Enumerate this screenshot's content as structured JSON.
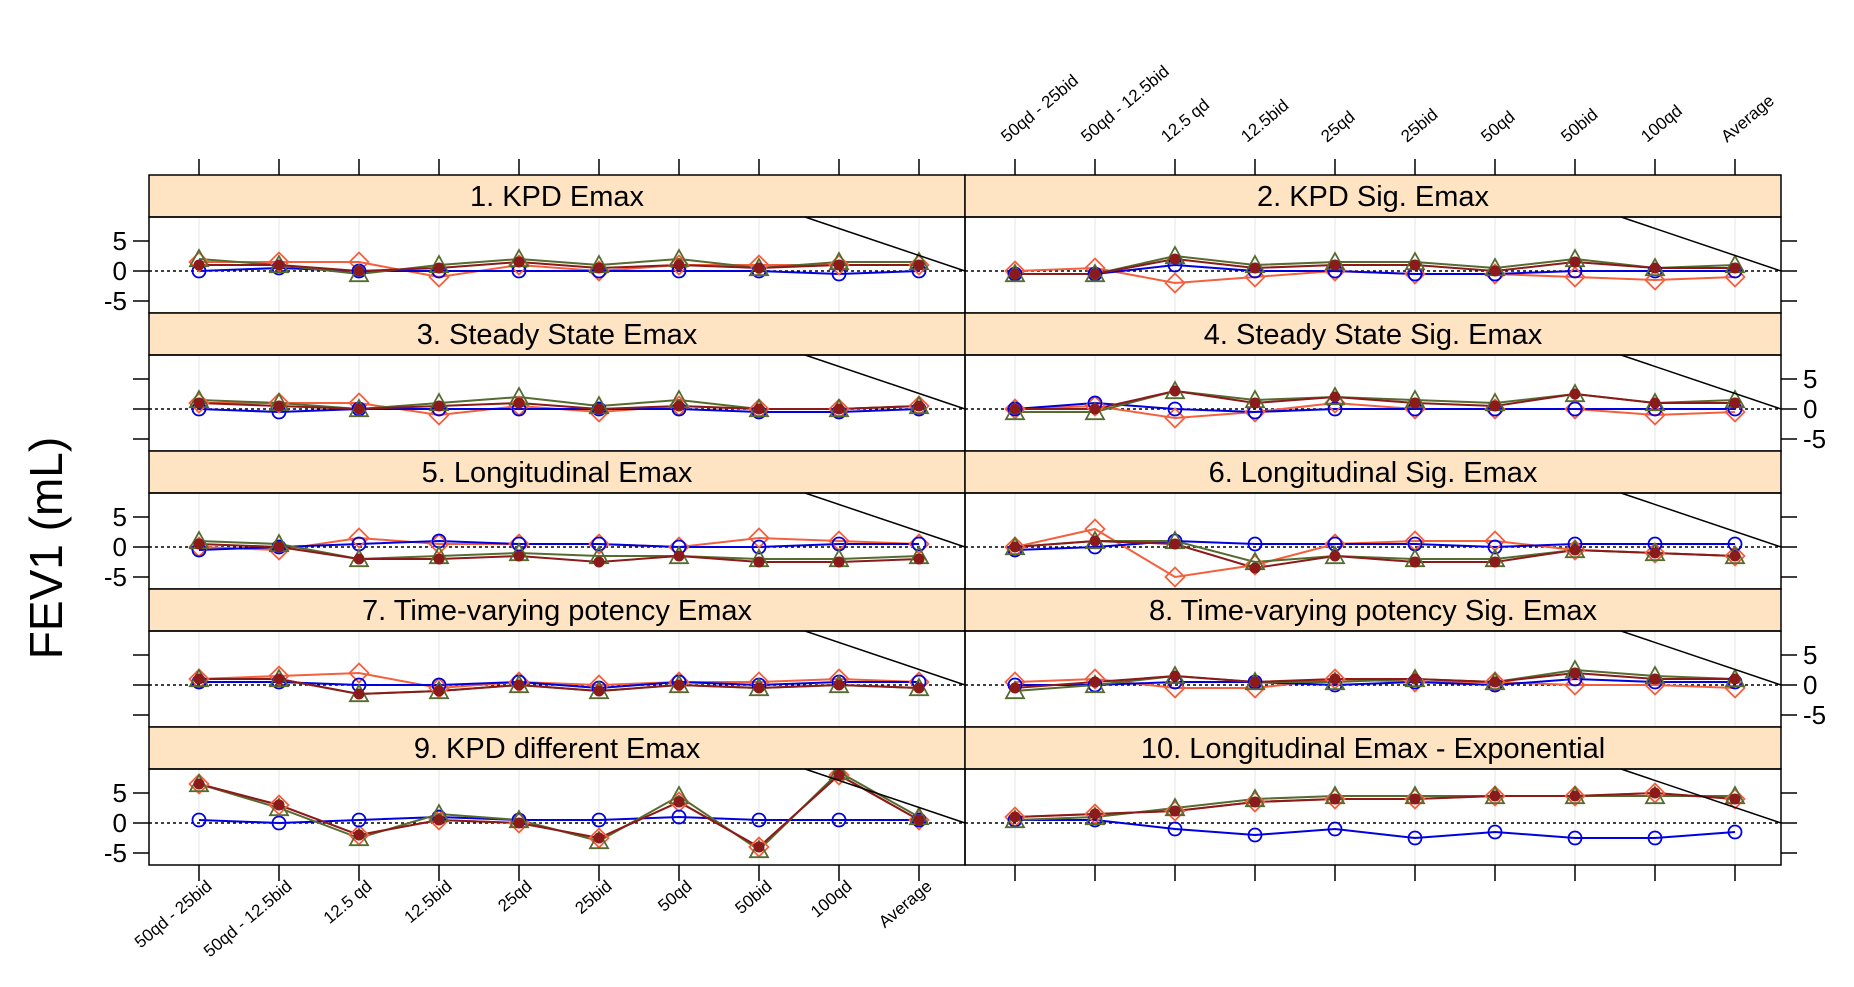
{
  "y_axis_label": "FEV1 (mL)",
  "categories": [
    "50qd - 25bid",
    "50qd - 12.5bid",
    "12.5 qd",
    "12.5bid",
    "25qd",
    "25bid",
    "50qd",
    "50bid",
    "100qd",
    "Average"
  ],
  "colors": {
    "strip_bg": "#ffe4c4",
    "diamond": "#f4603e",
    "circle": "#0000e0",
    "triangle": "#556b2f",
    "dot": "#8b1a1a",
    "grid": "#e6e6e6"
  },
  "chart_data": {
    "type": "line",
    "layout": "trellis 2 columns x 5 rows",
    "ylim": [
      -7,
      9
    ],
    "yticks": [
      -5,
      0,
      5
    ],
    "reference_line": 0,
    "panels": [
      {
        "title": "1. KPD Emax",
        "series": [
          {
            "marker": "diamond",
            "values": [
              1.5,
              1.5,
              1.5,
              -1,
              1,
              0,
              1,
              1,
              1,
              1
            ]
          },
          {
            "marker": "circle",
            "values": [
              0,
              0.5,
              0,
              0,
              0,
              0,
              0,
              0,
              -0.5,
              0
            ]
          },
          {
            "marker": "triangle",
            "values": [
              2,
              1,
              -0.5,
              1,
              2,
              1,
              2,
              0.5,
              1.5,
              1.5
            ]
          },
          {
            "marker": "dot",
            "values": [
              1,
              1,
              0,
              0.5,
              1.5,
              0.5,
              1,
              0.5,
              1,
              1
            ]
          }
        ]
      },
      {
        "title": "2. KPD Sig. Emax",
        "series": [
          {
            "marker": "diamond",
            "values": [
              0,
              0.5,
              -2,
              -1,
              0,
              -0.5,
              -0.5,
              -1,
              -1.5,
              -1
            ]
          },
          {
            "marker": "circle",
            "values": [
              -0.5,
              -0.5,
              1,
              0,
              0,
              -0.5,
              -0.5,
              0,
              0,
              0
            ]
          },
          {
            "marker": "triangle",
            "values": [
              -0.5,
              -0.5,
              2.5,
              1,
              1.5,
              1.5,
              0.5,
              2,
              0.5,
              1
            ]
          },
          {
            "marker": "dot",
            "values": [
              -0.5,
              -0.5,
              2,
              0.5,
              1,
              1,
              0,
              1.5,
              0.5,
              0.5
            ]
          }
        ]
      },
      {
        "title": "3. Steady State Emax",
        "series": [
          {
            "marker": "diamond",
            "values": [
              1,
              1,
              1,
              -1,
              0.5,
              -0.5,
              0.5,
              0,
              0,
              0.5
            ]
          },
          {
            "marker": "circle",
            "values": [
              0,
              -0.5,
              0,
              0,
              0,
              0,
              0,
              -0.5,
              -0.5,
              0
            ]
          },
          {
            "marker": "triangle",
            "values": [
              1.5,
              1,
              0,
              1,
              2,
              0.5,
              1.5,
              0,
              0,
              0.5
            ]
          },
          {
            "marker": "dot",
            "values": [
              1,
              0.5,
              0,
              0.5,
              1,
              0,
              0.5,
              0,
              0,
              0.5
            ]
          }
        ]
      },
      {
        "title": "4. Steady State Sig. Emax",
        "series": [
          {
            "marker": "diamond",
            "values": [
              0,
              0.5,
              -1.5,
              -0.5,
              1,
              0,
              0,
              0,
              -1,
              -0.5
            ]
          },
          {
            "marker": "circle",
            "values": [
              0,
              1,
              0,
              -0.5,
              0,
              0,
              0,
              0,
              0,
              0
            ]
          },
          {
            "marker": "triangle",
            "values": [
              -0.5,
              -0.5,
              3,
              1.5,
              2,
              1.5,
              1,
              2.5,
              1,
              1.5
            ]
          },
          {
            "marker": "dot",
            "values": [
              0,
              0,
              3,
              1,
              2,
              1,
              0.5,
              2.5,
              1,
              1
            ]
          }
        ]
      },
      {
        "title": "5. Longitudinal Emax",
        "series": [
          {
            "marker": "diamond",
            "values": [
              0,
              -0.5,
              1.5,
              0.5,
              0.5,
              0.5,
              0,
              1.5,
              1,
              0.5
            ]
          },
          {
            "marker": "circle",
            "values": [
              -0.5,
              0,
              0.5,
              1,
              0.5,
              0.5,
              0,
              0,
              0.5,
              0.5
            ]
          },
          {
            "marker": "triangle",
            "values": [
              1,
              0.5,
              -2,
              -1.5,
              -1,
              -1.5,
              -1.5,
              -2,
              -2,
              -1.5
            ]
          },
          {
            "marker": "dot",
            "values": [
              0.5,
              0,
              -2,
              -2,
              -1.5,
              -2.5,
              -1.5,
              -2.5,
              -2.5,
              -2
            ]
          }
        ]
      },
      {
        "title": "6. Longitudinal Sig. Emax",
        "series": [
          {
            "marker": "diamond",
            "values": [
              0,
              3,
              -5,
              -3,
              0.5,
              1,
              1,
              -0.5,
              -1,
              -1.5
            ]
          },
          {
            "marker": "circle",
            "values": [
              -0.5,
              0,
              1,
              0.5,
              0.5,
              0.5,
              0,
              0.5,
              0.5,
              0.5
            ]
          },
          {
            "marker": "triangle",
            "values": [
              0,
              1,
              1,
              -2.5,
              -1.5,
              -2,
              -2,
              -0.5,
              -1,
              -1.5
            ]
          },
          {
            "marker": "dot",
            "values": [
              0,
              1,
              0.5,
              -3.5,
              -1.5,
              -2.5,
              -2.5,
              -0.5,
              -1,
              -1.5
            ]
          }
        ]
      },
      {
        "title": "7. Time-varying potency Emax",
        "series": [
          {
            "marker": "diamond",
            "values": [
              1,
              1.5,
              2,
              -0.5,
              0.5,
              0,
              0.5,
              0.5,
              1,
              0.5
            ]
          },
          {
            "marker": "circle",
            "values": [
              0.5,
              0.5,
              0,
              0,
              0.5,
              -0.5,
              0.5,
              0,
              0.5,
              0.5
            ]
          },
          {
            "marker": "triangle",
            "values": [
              1,
              1,
              -1.5,
              -1,
              0,
              -1,
              0,
              -0.5,
              0,
              -0.5
            ]
          },
          {
            "marker": "dot",
            "values": [
              1,
              1,
              -1.5,
              -1,
              0,
              -1,
              0,
              -0.5,
              0,
              -0.5
            ]
          }
        ]
      },
      {
        "title": "8. Time-varying potency Sig. Emax",
        "series": [
          {
            "marker": "diamond",
            "values": [
              0.5,
              1,
              -0.5,
              -0.5,
              1,
              0.5,
              0.5,
              0,
              0,
              -0.5
            ]
          },
          {
            "marker": "circle",
            "values": [
              0,
              0,
              0.5,
              0.5,
              0,
              0.5,
              0,
              1,
              0.5,
              0.5
            ]
          },
          {
            "marker": "triangle",
            "values": [
              -1,
              0,
              1.5,
              0.5,
              0.5,
              1,
              0.5,
              2.5,
              1.5,
              1
            ]
          },
          {
            "marker": "dot",
            "values": [
              -0.5,
              0.5,
              1.5,
              0.5,
              1,
              1,
              0.5,
              2,
              1,
              1
            ]
          }
        ]
      },
      {
        "title": "9. KPD different Emax",
        "series": [
          {
            "marker": "diamond",
            "values": [
              6.5,
              3,
              -2,
              0.5,
              0,
              -2.5,
              3.5,
              -4,
              8,
              0.5
            ]
          },
          {
            "marker": "circle",
            "values": [
              0.5,
              0,
              0.5,
              1,
              0.5,
              0.5,
              1,
              0.5,
              0.5,
              0.5
            ]
          },
          {
            "marker": "triangle",
            "values": [
              6.5,
              2.5,
              -2.5,
              1.5,
              0.5,
              -3,
              4.5,
              -4.5,
              8.5,
              1
            ]
          },
          {
            "marker": "dot",
            "values": [
              6.5,
              3,
              -2,
              0.5,
              0,
              -2.5,
              3.5,
              -4,
              8,
              0.5
            ]
          }
        ]
      },
      {
        "title": "10. Longitudinal Emax - Exponential",
        "series": [
          {
            "marker": "diamond",
            "values": [
              1,
              1.5,
              2,
              3.5,
              4,
              4,
              4.5,
              4.5,
              5,
              4
            ]
          },
          {
            "marker": "circle",
            "values": [
              0.5,
              0.5,
              -1,
              -2,
              -1,
              -2.5,
              -1.5,
              -2.5,
              -2.5,
              -1.5
            ]
          },
          {
            "marker": "triangle",
            "values": [
              0.5,
              1,
              2.5,
              4,
              4.5,
              4.5,
              4.5,
              4.5,
              4.5,
              4.5
            ]
          },
          {
            "marker": "dot",
            "values": [
              1,
              1.5,
              2,
              3.5,
              4,
              4,
              4.5,
              4.5,
              5,
              4
            ]
          }
        ]
      }
    ]
  }
}
